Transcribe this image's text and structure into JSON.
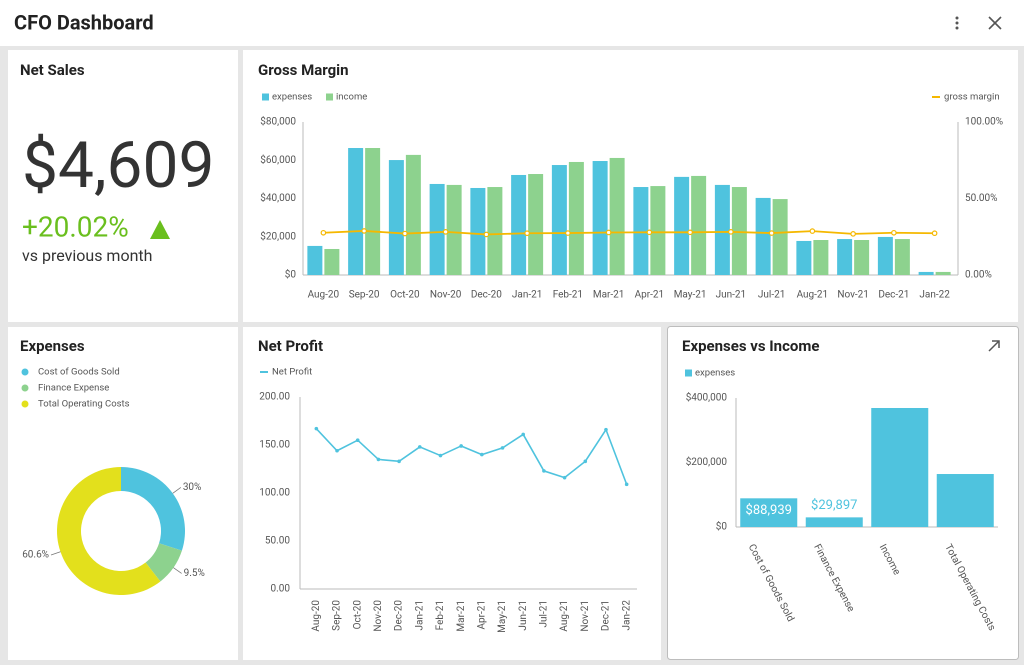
{
  "header": {
    "title": "CFO Dashboard"
  },
  "net_sales": {
    "title": "Net Sales",
    "value": "$4,609",
    "change": "+20.02%",
    "caption": "vs previous month"
  },
  "chart_data": [
    {
      "type": "bar",
      "title": "Gross Margin",
      "categories": [
        "Aug-20",
        "Sep-20",
        "Oct-20",
        "Nov-20",
        "Dec-20",
        "Jan-21",
        "Feb-21",
        "Mar-21",
        "Apr-21",
        "May-21",
        "Jun-21",
        "Jul-21",
        "Aug-21",
        "Nov-21",
        "Dec-21",
        "Jan-22"
      ],
      "series": [
        {
          "name": "expenses",
          "color": "#4fc3de",
          "values": [
            15200,
            66400,
            60100,
            47600,
            45500,
            52300,
            57500,
            59600,
            46000,
            51300,
            47100,
            40300,
            17800,
            18800,
            19900,
            1600
          ]
        },
        {
          "name": "income",
          "color": "#8dd28e",
          "values": [
            13600,
            66400,
            62800,
            47100,
            46000,
            52800,
            59100,
            61200,
            46500,
            51800,
            46000,
            39700,
            18300,
            18300,
            18800,
            1600
          ]
        },
        {
          "name": "gross margin",
          "color": "#f5b800",
          "type": "line",
          "axis": "y2",
          "values": [
            27.6,
            28.8,
            27.1,
            28.2,
            26.5,
            27.3,
            27.4,
            27.8,
            27.9,
            27.9,
            28.2,
            27.4,
            28.7,
            26.9,
            27.6,
            27.3
          ]
        }
      ],
      "ylim": [
        0,
        80000
      ],
      "yticks": [
        {
          "value": 0,
          "label": "$0"
        },
        {
          "value": 20000,
          "label": "$20,000"
        },
        {
          "value": 40000,
          "label": "$40,000"
        },
        {
          "value": 60000,
          "label": "$60,000"
        },
        {
          "value": 80000,
          "label": "$80,000"
        }
      ],
      "y2lim": [
        0,
        100
      ],
      "y2ticks": [
        {
          "value": 0,
          "label": "0.00%"
        },
        {
          "value": 50,
          "label": "50.00%"
        },
        {
          "value": 100,
          "label": "100.00%"
        }
      ],
      "grid": false
    },
    {
      "type": "donut",
      "title": "Expenses",
      "categories": [
        "Cost of Goods Sold",
        "Finance Expense",
        "Total Operating Costs"
      ],
      "values": [
        30,
        9.5,
        60.6
      ],
      "value_labels": [
        "30%",
        "9.5%",
        "60.6%"
      ],
      "colors": [
        "#4fc3de",
        "#8dd28e",
        "#e3e01c"
      ]
    },
    {
      "type": "line",
      "title": "Net Profit",
      "categories": [
        "Aug-20",
        "Sep-20",
        "Oct-20",
        "Nov-20",
        "Dec-20",
        "Jan-21",
        "Feb-21",
        "Mar-21",
        "Apr-21",
        "May-21",
        "Jun-21",
        "Jul-21",
        "Aug-21",
        "Nov-21",
        "Dec-21",
        "Jan-22"
      ],
      "series": [
        {
          "name": "Net Profit",
          "color": "#4fc3de",
          "values": [
            167,
            144,
            155,
            135,
            133,
            148,
            139,
            149,
            140,
            147,
            161,
            123,
            116,
            133,
            166,
            109
          ]
        }
      ],
      "ylim": [
        0,
        200
      ],
      "yticks": [
        {
          "value": 0,
          "label": "0.00"
        },
        {
          "value": 50,
          "label": "50.00"
        },
        {
          "value": 100,
          "label": "100.00"
        },
        {
          "value": 150,
          "label": "150.00"
        },
        {
          "value": 200,
          "label": "200.00"
        }
      ],
      "grid": false
    },
    {
      "type": "bar",
      "title": "Expenses vs Income",
      "categories": [
        "Cost of Goods Sold",
        "Finance Expense",
        "Income",
        "Total Operating Costs"
      ],
      "series": [
        {
          "name": "expenses",
          "color": "#4fc3de",
          "values": [
            88939,
            29897,
            369000,
            164300
          ],
          "value_labels": [
            "$88,939",
            "$29,897",
            null,
            null
          ]
        }
      ],
      "ylim": [
        0,
        400000
      ],
      "yticks": [
        {
          "value": 0,
          "label": "$0"
        },
        {
          "value": 200000,
          "label": "$200,000"
        },
        {
          "value": 400000,
          "label": "$400,000"
        }
      ],
      "grid": false
    }
  ]
}
